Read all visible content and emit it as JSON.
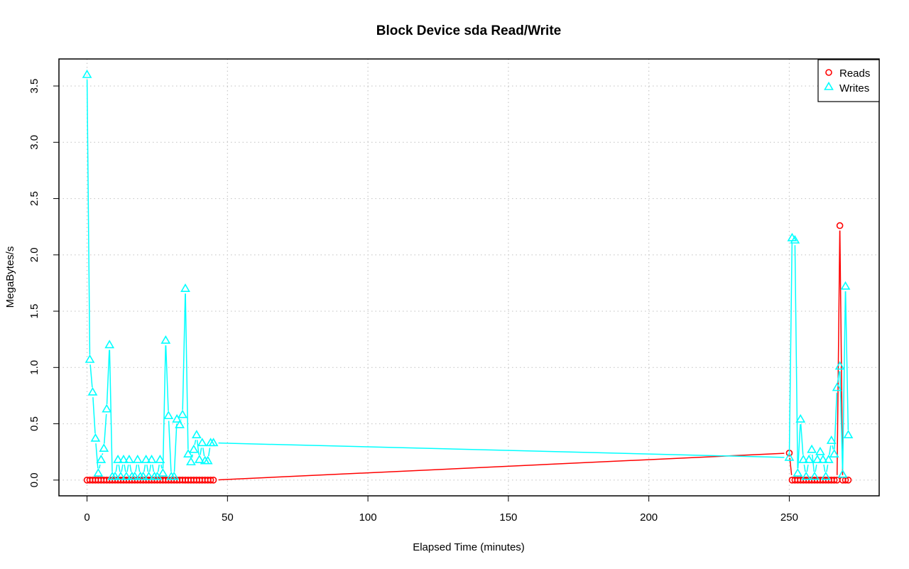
{
  "chart_data": {
    "type": "line",
    "title": "Block Device sda Read/Write",
    "xlabel": "Elapsed Time (minutes)",
    "ylabel": "MegaBytes/s",
    "xlim": [
      -10,
      282
    ],
    "ylim": [
      -0.14,
      3.74
    ],
    "xticks": [
      0,
      50,
      100,
      150,
      200,
      250
    ],
    "yticks": [
      0.0,
      0.5,
      1.0,
      1.5,
      2.0,
      2.5,
      3.0,
      3.5
    ],
    "ytick_labels": [
      "0.0",
      "0.5",
      "1.0",
      "1.5",
      "2.0",
      "2.5",
      "3.0",
      "3.5"
    ],
    "grid": true,
    "legend_position": "top-right",
    "series": [
      {
        "name": "Reads",
        "color": "#ff0000",
        "marker": "circle",
        "x": [
          0,
          1,
          2,
          3,
          4,
          5,
          6,
          7,
          8,
          9,
          10,
          11,
          12,
          13,
          14,
          15,
          16,
          17,
          18,
          19,
          20,
          21,
          22,
          23,
          24,
          25,
          26,
          27,
          28,
          29,
          30,
          31,
          32,
          33,
          34,
          35,
          36,
          37,
          38,
          39,
          40,
          41,
          42,
          43,
          44,
          45,
          250,
          251,
          252,
          253,
          254,
          255,
          256,
          257,
          258,
          259,
          260,
          261,
          262,
          263,
          264,
          265,
          266,
          267,
          268,
          269,
          270,
          271
        ],
        "y": [
          0,
          0,
          0,
          0,
          0,
          0,
          0,
          0,
          0,
          0,
          0,
          0,
          0,
          0,
          0,
          0,
          0,
          0,
          0,
          0,
          0,
          0,
          0,
          0,
          0,
          0,
          0,
          0,
          0,
          0,
          0,
          0,
          0,
          0,
          0,
          0,
          0,
          0,
          0,
          0,
          0,
          0,
          0,
          0,
          0,
          0,
          0.24,
          0,
          0,
          0,
          0,
          0,
          0,
          0,
          0,
          0,
          0,
          0,
          0,
          0,
          0,
          0,
          0,
          0,
          2.26,
          0,
          0,
          0
        ]
      },
      {
        "name": "Writes",
        "color": "#00ffff",
        "marker": "triangle",
        "x": [
          0,
          1,
          2,
          3,
          4,
          5,
          6,
          7,
          8,
          9,
          10,
          11,
          12,
          13,
          14,
          15,
          16,
          17,
          18,
          19,
          20,
          21,
          22,
          23,
          24,
          25,
          26,
          27,
          28,
          29,
          30,
          31,
          32,
          33,
          34,
          35,
          36,
          37,
          38,
          39,
          40,
          41,
          42,
          43,
          44,
          45,
          250,
          251,
          252,
          253,
          254,
          255,
          256,
          257,
          258,
          259,
          260,
          261,
          262,
          263,
          264,
          265,
          266,
          267,
          268,
          269,
          270,
          271
        ],
        "y": [
          3.6,
          1.07,
          0.78,
          0.37,
          0.06,
          0.18,
          0.28,
          0.63,
          1.2,
          0.03,
          0.03,
          0.18,
          0.03,
          0.18,
          0.03,
          0.18,
          0.03,
          0.03,
          0.18,
          0.03,
          0.03,
          0.18,
          0.03,
          0.18,
          0.03,
          0.03,
          0.18,
          0.06,
          1.24,
          0.57,
          0.03,
          0.03,
          0.54,
          0.49,
          0.58,
          1.7,
          0.23,
          0.16,
          0.27,
          0.4,
          0.18,
          0.33,
          0.17,
          0.17,
          0.33,
          0.33,
          0.2,
          2.15,
          2.13,
          0.06,
          0.54,
          0.18,
          0.03,
          0.18,
          0.27,
          0.03,
          0.18,
          0.25,
          0.18,
          0.03,
          0.18,
          0.35,
          0.23,
          0.82,
          1.01,
          0.05,
          1.72,
          0.4
        ]
      }
    ]
  }
}
